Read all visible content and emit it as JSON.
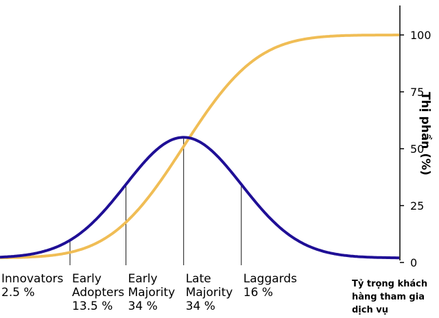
{
  "chart_data": {
    "type": "line",
    "title": "",
    "ylabel": "Thị phần (%)",
    "xlabel_lines": [
      "Tỷ trọng khách",
      "hàng tham gia",
      "dịch vụ"
    ],
    "ylim": [
      0,
      100
    ],
    "yticks": [
      "0",
      "25",
      "50",
      "75",
      "100"
    ],
    "ytick_values": [
      0,
      25,
      50,
      75,
      100
    ],
    "grid": false,
    "segments": [
      {
        "name": "Innovators",
        "name_lines": [
          "Innovators"
        ],
        "pct": "2.5 %",
        "boundary_x": 0.0
      },
      {
        "name": "Early Adopters",
        "name_lines": [
          "Early",
          "Adopters"
        ],
        "pct": "13.5 %",
        "boundary_x": 0.025
      },
      {
        "name": "Early Majority",
        "name_lines": [
          "Early",
          "Majority"
        ],
        "pct": "34 %",
        "boundary_x": 0.16
      },
      {
        "name": "Late Majority",
        "name_lines": [
          "Late",
          "Majority"
        ],
        "pct": "34 %",
        "boundary_x": 0.5
      },
      {
        "name": "Laggards",
        "name_lines": [
          "Laggards"
        ],
        "pct": "16 %",
        "boundary_x": 0.84
      }
    ],
    "series": [
      {
        "kind": "bell",
        "color": "#1f0f96",
        "peak": 55,
        "base": 2
      },
      {
        "kind": "cumulative",
        "color": "#f0bd55",
        "min": 2,
        "max": 100
      }
    ]
  }
}
